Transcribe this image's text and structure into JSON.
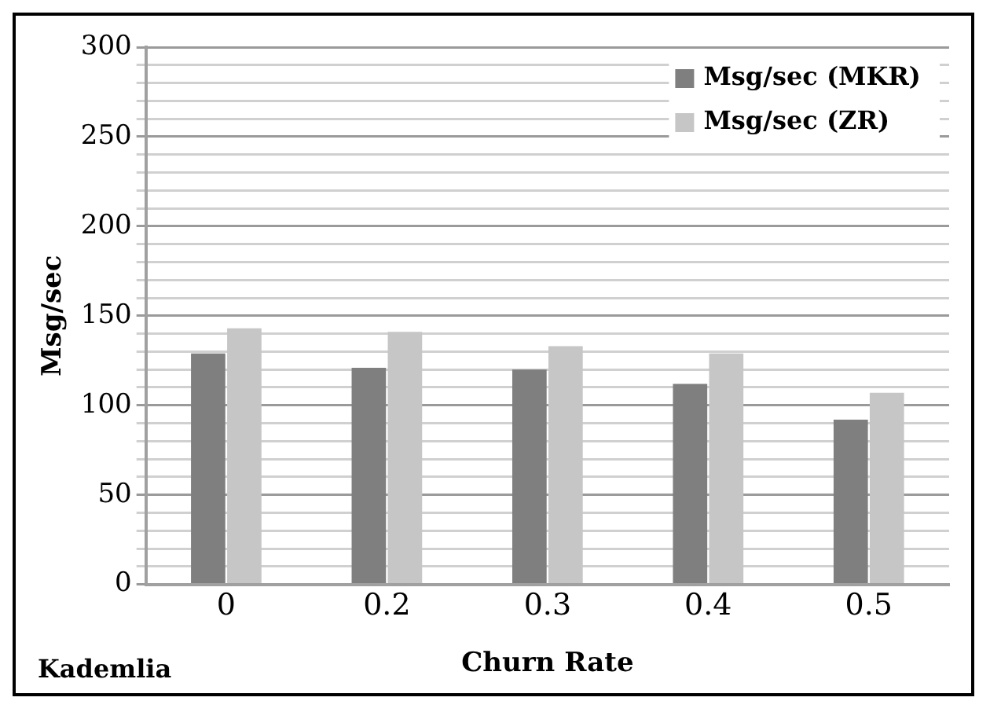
{
  "chart_data": {
    "type": "bar",
    "xlabel": "Churn Rate",
    "ylabel": "Msg/sec",
    "categories": [
      "0",
      "0.2",
      "0.3",
      "0.4",
      "0.5"
    ],
    "series": [
      {
        "name": "Msg/sec (MKR)",
        "color": "#7f7f7f",
        "values": [
          129,
          121,
          120,
          112,
          92
        ]
      },
      {
        "name": "Msg/sec (ZR)",
        "color": "#c6c6c6",
        "values": [
          143,
          141,
          133,
          129,
          107
        ]
      }
    ],
    "ylim": [
      0,
      300
    ],
    "yticks": [
      0,
      {
        "value": 10,
        "label": null
      },
      {
        "value": 20,
        "label": null
      },
      {
        "value": 30,
        "label": null
      },
      {
        "value": 40,
        "label": null
      },
      50,
      {
        "value": 60,
        "label": null
      },
      {
        "value": 70,
        "label": null
      },
      {
        "value": 80,
        "label": null
      },
      {
        "value": 90,
        "label": null
      },
      100,
      {
        "value": 110,
        "label": null
      },
      {
        "value": 120,
        "label": null
      },
      {
        "value": 130,
        "label": null
      },
      {
        "value": 140,
        "label": null
      },
      150,
      {
        "value": 160,
        "label": null
      },
      {
        "value": 170,
        "label": null
      },
      {
        "value": 180,
        "label": null
      },
      {
        "value": 190,
        "label": null
      },
      200,
      {
        "value": 210,
        "label": null
      },
      {
        "value": 220,
        "label": null
      },
      {
        "value": 230,
        "label": null
      },
      {
        "value": 240,
        "label": null
      },
      250,
      {
        "value": 260,
        "label": null
      },
      {
        "value": 270,
        "label": null
      },
      {
        "value": 280,
        "label": null
      },
      {
        "value": 290,
        "label": null
      },
      300
    ],
    "grid": "y",
    "legend": "top right",
    "annotations": [
      "Kademlia"
    ]
  }
}
